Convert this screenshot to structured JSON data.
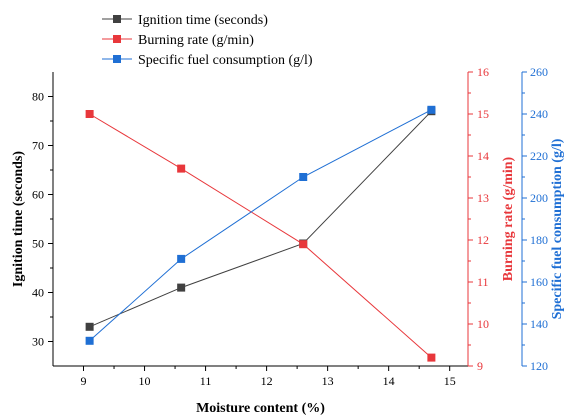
{
  "chart_data": {
    "type": "line",
    "x": [
      9.1,
      10.6,
      12.6,
      14.7
    ],
    "xlabel": "Moisture content (%)",
    "xlim": [
      8.5,
      15.3
    ],
    "xticks": [
      "9",
      "10",
      "11",
      "12",
      "13",
      "14",
      "15"
    ],
    "series": [
      {
        "name": "Ignition time (seconds)",
        "axis": "left",
        "color": "#404040",
        "values": [
          33,
          41,
          50,
          77
        ]
      },
      {
        "name": "Burning rate (g/min)",
        "axis": "right1",
        "color": "#e8373b",
        "values": [
          15.0,
          13.7,
          11.9,
          9.2
        ]
      },
      {
        "name": "Specific fuel consumption (g/l)",
        "axis": "right2",
        "color": "#1f6fd4",
        "values": [
          132,
          171,
          210,
          242
        ]
      }
    ],
    "axes": {
      "left": {
        "label": "Ignition time (seconds)",
        "range": [
          25,
          85
        ],
        "ticks": [
          "30",
          "40",
          "50",
          "60",
          "70",
          "80"
        ],
        "color": "#000000"
      },
      "right1": {
        "label": "Burning rate (g/min)",
        "range": [
          9,
          16
        ],
        "ticks": [
          "9",
          "10",
          "11",
          "12",
          "13",
          "14",
          "15",
          "16"
        ],
        "color": "#e8373b"
      },
      "right2": {
        "label": "Specific fuel consumption (g/l)",
        "range": [
          120,
          260
        ],
        "ticks": [
          "120",
          "140",
          "160",
          "180",
          "200",
          "220",
          "240",
          "260"
        ],
        "color": "#1f6fd4"
      }
    },
    "legend": "top-left"
  }
}
